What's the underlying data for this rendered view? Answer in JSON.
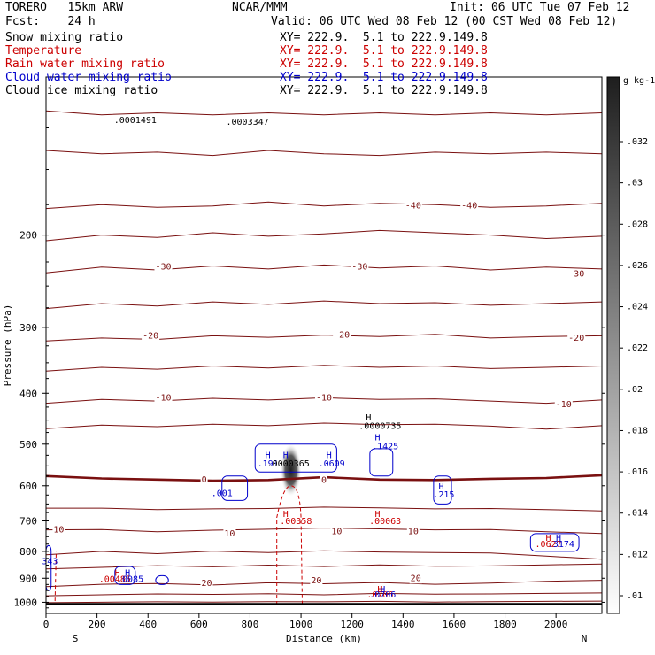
{
  "header": {
    "model": "TORERO   15km ARW",
    "center": "NCAR/MMM",
    "init": "Init: 06 UTC Tue 07 Feb 12",
    "fcst": "Fcst:    24 h",
    "valid": "Valid: 06 UTC Wed 08 Feb 12 (00 CST Wed 08 Feb 12)"
  },
  "fields": [
    {
      "name": "Snow mixing ratio",
      "xy": "XY= 222.9.  5.1 to 222.9.149.8",
      "color": "#000000"
    },
    {
      "name": "Temperature",
      "xy": "XY= 222.9.  5.1 to 222.9.149.8",
      "color": "#cc0000"
    },
    {
      "name": "Rain water mixing ratio",
      "xy": "XY= 222.9.  5.1 to 222.9.149.8",
      "color": "#cc0000"
    },
    {
      "name": "Cloud water mixing ratio",
      "xy": "XY= 222.9.  5.1 to 222.9.149.8",
      "color": "#0000cc"
    },
    {
      "name": "Cloud ice mixing ratio",
      "xy": "XY= 222.9.  5.1 to 222.9.149.8",
      "color": "#000000"
    }
  ],
  "colors": {
    "temperature": "#7a1010",
    "zero_isotherm": "#7a1010",
    "rain": "#cc0000",
    "cloud_water": "#0000cc",
    "snow": "#000000"
  },
  "chart_data": {
    "type": "contour-cross-section",
    "xlabel": "Distance (km)",
    "ylabel": "Pressure (hPa)",
    "xlim": [
      0,
      2180
    ],
    "ylim": [
      1050,
      100
    ],
    "y_log": true,
    "x_ticks": [
      0,
      200,
      400,
      600,
      800,
      1000,
      1200,
      1400,
      1600,
      1800,
      2000
    ],
    "y_ticks": [
      200,
      300,
      400,
      500,
      600,
      700,
      800,
      900,
      1000
    ],
    "x_end_labels": {
      "left": "S",
      "right": "N"
    },
    "colorbar": {
      "unit": "g kg-1",
      "ticks": [
        ".01",
        ".012",
        ".014",
        ".016",
        ".018",
        ".02",
        ".022",
        ".024",
        ".026",
        ".028",
        ".03",
        ".032"
      ]
    },
    "temperature_contours": [
      {
        "level": -50,
        "p": [
          116,
          118,
          117,
          118,
          117,
          118,
          117,
          118,
          117,
          118,
          117
        ]
      },
      {
        "level": -50,
        "p": [
          138,
          140,
          139,
          141,
          138,
          140,
          141,
          139,
          140,
          139,
          140
        ]
      },
      {
        "level": -40,
        "p": [
          178,
          175,
          177,
          176,
          173,
          176,
          174,
          175,
          177,
          176,
          174
        ]
      },
      {
        "level": -40,
        "p": [
          205,
          200,
          202,
          198,
          201,
          199,
          196,
          198,
          200,
          203,
          201
        ]
      },
      {
        "level": -30,
        "p": [
          236,
          230,
          233,
          229,
          232,
          228,
          231,
          229,
          233,
          230,
          232
        ]
      },
      {
        "level": -30,
        "p": [
          276,
          270,
          273,
          268,
          271,
          267,
          270,
          269,
          272,
          270,
          268
        ]
      },
      {
        "level": -20,
        "p": [
          318,
          314,
          316,
          311,
          313,
          310,
          312,
          309,
          314,
          312,
          311
        ]
      },
      {
        "level": -20,
        "p": [
          363,
          357,
          360,
          355,
          358,
          354,
          357,
          355,
          359,
          357,
          355
        ]
      },
      {
        "level": -10,
        "p": [
          418,
          411,
          414,
          409,
          412,
          408,
          411,
          410,
          414,
          418,
          412
        ]
      },
      {
        "level": -10,
        "p": [
          467,
          460,
          463,
          458,
          461,
          456,
          459,
          458,
          462,
          468,
          461
        ]
      },
      {
        "level": 0,
        "p": [
          575,
          581,
          584,
          587,
          585,
          578,
          584,
          585,
          582,
          580,
          573
        ]
      },
      {
        "level": 10,
        "p": [
          662,
          662,
          666,
          664,
          663,
          659,
          661,
          664,
          663,
          666,
          670
        ]
      },
      {
        "level": 10,
        "p": [
          728,
          727,
          734,
          729,
          726,
          722,
          725,
          728,
          727,
          734,
          740
        ]
      },
      {
        "level": 10,
        "p": [
          812,
          800,
          808,
          799,
          804,
          798,
          802,
          804,
          806,
          817,
          828
        ]
      },
      {
        "level": 20,
        "p": [
          864,
          858,
          852,
          856,
          850,
          855,
          849,
          854,
          853,
          849,
          846
        ]
      },
      {
        "level": 20,
        "p": [
          934,
          924,
          921,
          927,
          918,
          922,
          917,
          924,
          919,
          912,
          908
        ]
      },
      {
        "level": 20,
        "p": [
          972,
          968,
          964,
          966,
          963,
          968,
          962,
          965,
          964,
          962,
          960
        ]
      },
      {
        "level": 20,
        "p": [
          1002,
          1000,
          998,
          999,
          997,
          998,
          996,
          999,
          997,
          996,
          995
        ]
      }
    ],
    "contour_labels": [
      {
        "text": "-40",
        "x": 1440,
        "p": 176,
        "color": "#7a1010"
      },
      {
        "text": "-40",
        "x": 1660,
        "p": 176,
        "color": "#7a1010"
      },
      {
        "text": "-30",
        "x": 460,
        "p": 230,
        "color": "#7a1010"
      },
      {
        "text": "-30",
        "x": 1230,
        "p": 230,
        "color": "#7a1010"
      },
      {
        "text": "-30",
        "x": 2080,
        "p": 237,
        "color": "#7a1010"
      },
      {
        "text": "-20",
        "x": 410,
        "p": 311,
        "color": "#7a1010"
      },
      {
        "text": "-20",
        "x": 1160,
        "p": 310,
        "color": "#7a1010"
      },
      {
        "text": "-20",
        "x": 2080,
        "p": 314,
        "color": "#7a1010"
      },
      {
        "text": "-10",
        "x": 460,
        "p": 408,
        "color": "#7a1010"
      },
      {
        "text": "-10",
        "x": 1090,
        "p": 408,
        "color": "#7a1010"
      },
      {
        "text": "-10",
        "x": 2030,
        "p": 420,
        "color": "#7a1010"
      },
      {
        "text": "0",
        "x": 620,
        "p": 584,
        "color": "#7a1010"
      },
      {
        "text": "0",
        "x": 1090,
        "p": 585,
        "color": "#7a1010"
      },
      {
        "text": "10",
        "x": 50,
        "p": 728,
        "color": "#7a1010"
      },
      {
        "text": "10",
        "x": 720,
        "p": 740,
        "color": "#7a1010"
      },
      {
        "text": "10",
        "x": 1140,
        "p": 733,
        "color": "#7a1010"
      },
      {
        "text": "10",
        "x": 1440,
        "p": 733,
        "color": "#7a1010"
      },
      {
        "text": "20",
        "x": 630,
        "p": 921,
        "color": "#7a1010"
      },
      {
        "text": "20",
        "x": 1060,
        "p": 910,
        "color": "#7a1010"
      },
      {
        "text": "20",
        "x": 1450,
        "p": 900,
        "color": "#7a1010"
      }
    ],
    "maxima_labels": [
      {
        "text": ".0001491",
        "x": 350,
        "p": 121,
        "color": "#000000"
      },
      {
        "text": ".0003347",
        "x": 790,
        "p": 122,
        "color": "#000000"
      },
      {
        "text": "H",
        "x": 1265,
        "p": 445,
        "color": "#000000"
      },
      {
        "text": ".0000735",
        "x": 1310,
        "p": 462,
        "color": "#000000"
      },
      {
        "text": "H",
        "x": 1300,
        "p": 486,
        "color": "#0000cc"
      },
      {
        "text": ".1425",
        "x": 1330,
        "p": 505,
        "color": "#0000cc"
      },
      {
        "text": "H",
        "x": 870,
        "p": 525,
        "color": "#0000cc"
      },
      {
        "text": "H",
        "x": 940,
        "p": 525,
        "color": "#0000cc"
      },
      {
        "text": "H",
        "x": 1110,
        "p": 525,
        "color": "#0000cc"
      },
      {
        "text": ".191",
        "x": 870,
        "p": 545,
        "color": "#0000cc"
      },
      {
        "text": ".0000365",
        "x": 950,
        "p": 545,
        "color": "#000000"
      },
      {
        "text": ".0609",
        "x": 1120,
        "p": 545,
        "color": "#0000cc"
      },
      {
        "text": ".001",
        "x": 690,
        "p": 621,
        "color": "#0000cc"
      },
      {
        "text": "H",
        "x": 1550,
        "p": 603,
        "color": "#0000cc"
      },
      {
        "text": ".215",
        "x": 1560,
        "p": 624,
        "color": "#0000cc"
      },
      {
        "text": "H",
        "x": 940,
        "p": 680,
        "color": "#cc0000"
      },
      {
        "text": ".00358",
        "x": 980,
        "p": 702,
        "color": "#cc0000"
      },
      {
        "text": "H",
        "x": 1300,
        "p": 680,
        "color": "#cc0000"
      },
      {
        "text": ".00063",
        "x": 1330,
        "p": 702,
        "color": "#cc0000"
      },
      {
        "text": "H",
        "x": 1970,
        "p": 755,
        "color": "#cc0000"
      },
      {
        "text": "H",
        "x": 2010,
        "p": 755,
        "color": "#0000cc"
      },
      {
        "text": ".0627",
        "x": 1970,
        "p": 776,
        "color": "#cc0000"
      },
      {
        "text": ".3174",
        "x": 2020,
        "p": 776,
        "color": "#0000cc"
      },
      {
        "text": "H",
        "x": 280,
        "p": 880,
        "color": "#cc0000"
      },
      {
        "text": "H",
        "x": 320,
        "p": 880,
        "color": "#0000cc"
      },
      {
        "text": ".00485",
        "x": 270,
        "p": 905,
        "color": "#cc0000"
      },
      {
        "text": ".0085",
        "x": 330,
        "p": 905,
        "color": "#0000cc"
      },
      {
        "text": "H",
        "x": 1310,
        "p": 945,
        "color": "#cc0000"
      },
      {
        "text": "H",
        "x": 1320,
        "p": 945,
        "color": "#0000cc"
      },
      {
        "text": ".0706",
        "x": 1310,
        "p": 968,
        "color": "#cc0000"
      },
      {
        "text": ".0706",
        "x": 1320,
        "p": 968,
        "color": "#0000cc"
      },
      {
        "text": "343",
        "x": 15,
        "p": 836,
        "color": "#0000cc"
      }
    ]
  }
}
